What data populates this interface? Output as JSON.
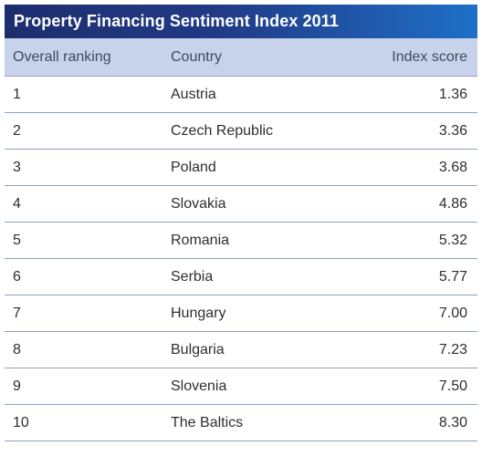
{
  "chart_data": {
    "type": "table",
    "title": "Property Financing Sentiment Index 2011",
    "columns": [
      "Overall ranking",
      "Country",
      "Index score"
    ],
    "rows": [
      [
        "1",
        "Austria",
        "1.36"
      ],
      [
        "2",
        "Czech Republic",
        "3.36"
      ],
      [
        "3",
        "Poland",
        "3.68"
      ],
      [
        "4",
        "Slovakia",
        "4.86"
      ],
      [
        "5",
        "Romania",
        "5.32"
      ],
      [
        "6",
        "Serbia",
        "5.77"
      ],
      [
        "7",
        "Hungary",
        "7.00"
      ],
      [
        "8",
        "Bulgaria",
        "7.23"
      ],
      [
        "9",
        "Slovenia",
        "7.50"
      ],
      [
        "10",
        "The Baltics",
        "8.30"
      ]
    ]
  },
  "colors": {
    "title_bar_start": "#1d2e6e",
    "title_bar_end": "#1f6fc8",
    "header_background": "#c7d3ea",
    "row_divider": "#8fa0bf"
  }
}
